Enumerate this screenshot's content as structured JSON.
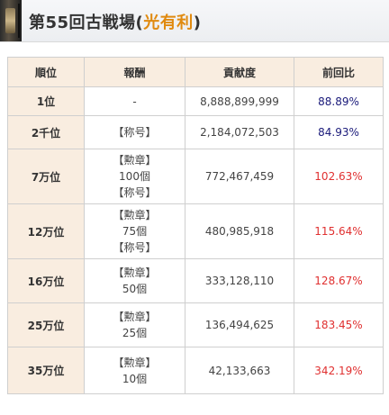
{
  "header": {
    "title_prefix": "第55回古戦場(",
    "title_highlight": "光有利",
    "title_suffix": ")"
  },
  "table": {
    "columns": [
      "順位",
      "報酬",
      "貢献度",
      "前回比"
    ],
    "rows": [
      {
        "rank": "1位",
        "reward": [
          "-"
        ],
        "contribution": "8,888,899,999",
        "prev": "88.89%",
        "trend": "down"
      },
      {
        "rank": "2千位",
        "reward": [
          "【称号】"
        ],
        "contribution": "2,184,072,503",
        "prev": "84.93%",
        "trend": "down"
      },
      {
        "rank": "7万位",
        "reward": [
          "【勲章】",
          "100個",
          "【称号】"
        ],
        "contribution": "772,467,459",
        "prev": "102.63%",
        "trend": "up"
      },
      {
        "rank": "12万位",
        "reward": [
          "【勲章】",
          "75個",
          "【称号】"
        ],
        "contribution": "480,985,918",
        "prev": "115.64%",
        "trend": "up"
      },
      {
        "rank": "16万位",
        "reward": [
          "【勲章】",
          "50個"
        ],
        "contribution": "333,128,110",
        "prev": "128.67%",
        "trend": "up"
      },
      {
        "rank": "25万位",
        "reward": [
          "【勲章】",
          "25個"
        ],
        "contribution": "136,494,625",
        "prev": "183.45%",
        "trend": "up"
      },
      {
        "rank": "35万位",
        "reward": [
          "【勲章】",
          "10個"
        ],
        "contribution": "42,133,663",
        "prev": "342.19%",
        "trend": "up"
      }
    ]
  },
  "colors": {
    "header_bg": "#eceef1",
    "highlight": "#e08a10",
    "rank_bg": "#f9ede0",
    "value_down": "#1a1a7a",
    "value_up": "#e03030",
    "border": "#cfcfcf"
  }
}
